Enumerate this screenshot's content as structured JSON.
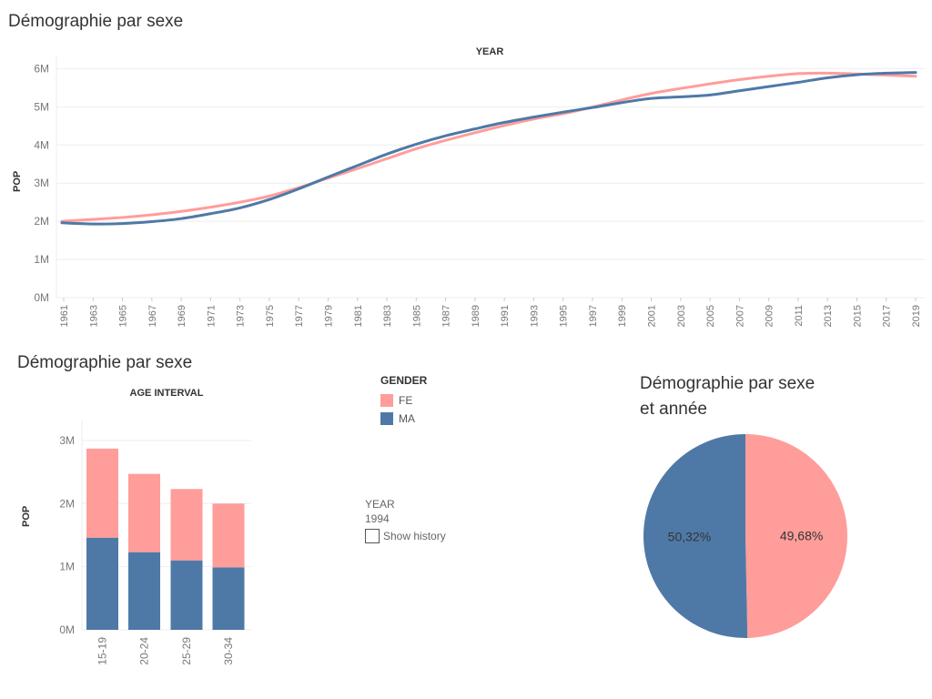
{
  "colors": {
    "female": "#ff9d9a",
    "male": "#4e79a7",
    "grid": "#eeeeee",
    "tick": "#777777"
  },
  "titles": {
    "top": "Démographie par sexe",
    "bottom_left": "Démographie par sexe",
    "pie_line1": "Démographie par sexe",
    "pie_line2": "et année"
  },
  "legend": {
    "title": "GENDER",
    "items": [
      {
        "label": "FE",
        "color": "#ff9d9a"
      },
      {
        "label": "MA",
        "color": "#4e79a7"
      }
    ]
  },
  "filter": {
    "label": "YEAR",
    "value": "1994",
    "checkbox_label": "Show history",
    "checked": false
  },
  "chart_data": [
    {
      "type": "line",
      "title": "Démographie par sexe",
      "column_header": "YEAR",
      "ylabel": "POP",
      "ylim": [
        0,
        6200000
      ],
      "yticks": [
        0,
        1000000,
        2000000,
        3000000,
        4000000,
        5000000,
        6000000
      ],
      "ytick_labels": [
        "0M",
        "1M",
        "2M",
        "3M",
        "4M",
        "5M",
        "6M"
      ],
      "xlim": [
        1960,
        2019
      ],
      "xticks": [
        1961,
        1963,
        1965,
        1967,
        1969,
        1971,
        1973,
        1975,
        1977,
        1979,
        1981,
        1983,
        1985,
        1987,
        1989,
        1991,
        1993,
        1995,
        1997,
        1999,
        2001,
        2003,
        2005,
        2007,
        2009,
        2011,
        2013,
        2015,
        2017,
        2019
      ],
      "x": [
        1960,
        1963,
        1965,
        1967,
        1969,
        1971,
        1973,
        1975,
        1977,
        1979,
        1981,
        1983,
        1985,
        1987,
        1989,
        1991,
        1993,
        1995,
        1997,
        1999,
        2001,
        2003,
        2005,
        2007,
        2009,
        2011,
        2013,
        2015,
        2017,
        2019
      ],
      "series": [
        {
          "name": "FE",
          "values": [
            2000000,
            2050000,
            2100000,
            2170000,
            2260000,
            2370000,
            2500000,
            2660000,
            2880000,
            3130000,
            3380000,
            3640000,
            3900000,
            4120000,
            4320000,
            4510000,
            4680000,
            4820000,
            4990000,
            5180000,
            5350000,
            5480000,
            5600000,
            5710000,
            5800000,
            5870000,
            5880000,
            5860000,
            5830000,
            5800000
          ]
        },
        {
          "name": "MA",
          "values": [
            1960000,
            1930000,
            1940000,
            1990000,
            2070000,
            2200000,
            2350000,
            2570000,
            2850000,
            3160000,
            3460000,
            3760000,
            4020000,
            4240000,
            4420000,
            4590000,
            4730000,
            4860000,
            4980000,
            5110000,
            5220000,
            5260000,
            5310000,
            5420000,
            5530000,
            5640000,
            5760000,
            5840000,
            5880000,
            5900000
          ]
        }
      ]
    },
    {
      "type": "bar",
      "stacked": true,
      "title": "Démographie par sexe",
      "column_header": "AGE INTERVAL",
      "ylabel": "POP",
      "ylim": [
        0,
        3200000
      ],
      "yticks": [
        0,
        1000000,
        2000000,
        3000000
      ],
      "ytick_labels": [
        "0M",
        "1M",
        "2M",
        "3M"
      ],
      "categories": [
        "15-19",
        "20-24",
        "25-29",
        "30-34"
      ],
      "series": [
        {
          "name": "MA",
          "values": [
            1460000,
            1230000,
            1100000,
            990000
          ]
        },
        {
          "name": "FE",
          "values": [
            1410000,
            1240000,
            1130000,
            1010000
          ]
        }
      ]
    },
    {
      "type": "pie",
      "title": "Démographie par sexe et année",
      "slices": [
        {
          "name": "FE",
          "value": 49.68,
          "label": "49,68%"
        },
        {
          "name": "MA",
          "value": 50.32,
          "label": "50,32%"
        }
      ]
    }
  ]
}
